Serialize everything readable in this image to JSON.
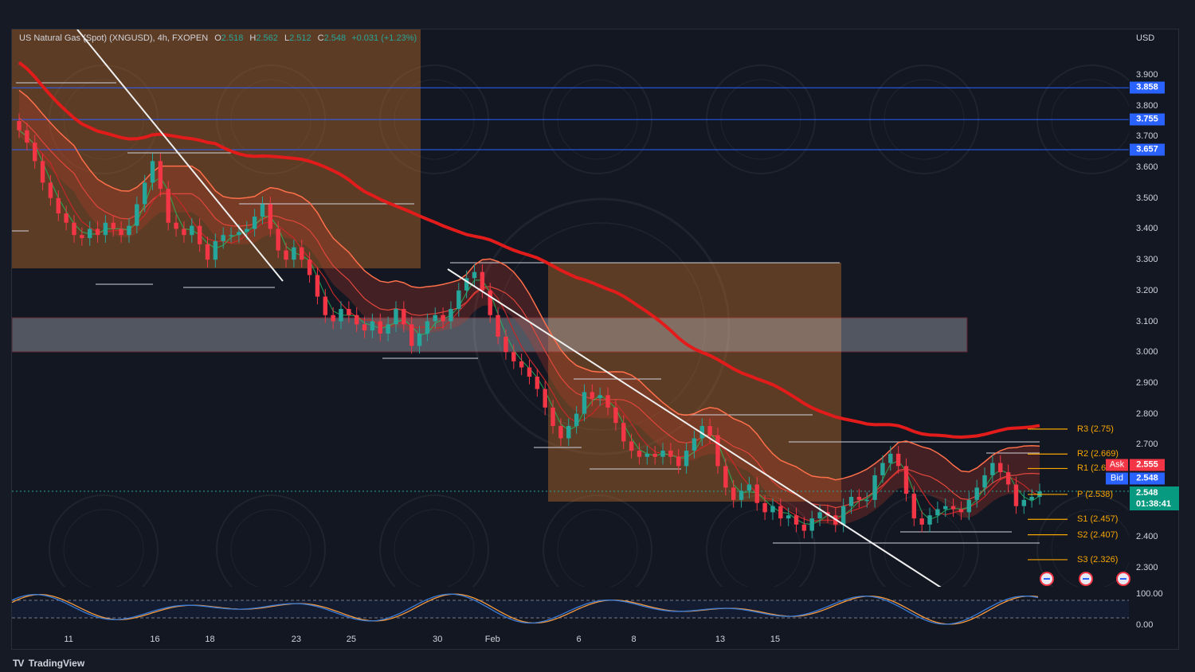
{
  "legend": {
    "symbol": "US Natural Gas (Spot) (XNGUSD), 4h, FXOPEN",
    "o_label": "O",
    "o_value": "2.518",
    "h_label": "H",
    "h_value": "2.562",
    "l_label": "L",
    "l_value": "2.512",
    "c_label": "C",
    "c_value": "2.548",
    "change": "+0.031 (+1.23%)"
  },
  "brand": {
    "logo": "TV",
    "name": "TradingView"
  },
  "axis": {
    "currency": "USD",
    "y_ticks": [
      "3.900",
      "3.800",
      "3.700",
      "3.600",
      "3.500",
      "3.400",
      "3.300",
      "3.200",
      "3.100",
      "3.000",
      "2.900",
      "2.800",
      "2.700",
      "2.400",
      "2.300"
    ],
    "x_ticks": [
      "11",
      "16",
      "18",
      "23",
      "25",
      "30",
      "Feb",
      "6",
      "8",
      "13",
      "15"
    ],
    "osc_ticks": [
      "100.00",
      "0.00"
    ]
  },
  "price_levels": [
    "3.858",
    "3.755",
    "3.657"
  ],
  "quote": {
    "ask_label": "Ask",
    "ask_value": "2.555",
    "bid_label": "Bid",
    "bid_value": "2.548",
    "last_value": "2.548",
    "countdown": "01:38:41"
  },
  "pivots": [
    {
      "label": "R3 (2.75)",
      "value": 2.75
    },
    {
      "label": "R2 (2.669)",
      "value": 2.669
    },
    {
      "label": "R1 (2.6",
      "value": 2.622
    },
    {
      "label": "P (2.538)",
      "value": 2.538
    },
    {
      "label": "S1 (2.457)",
      "value": 2.457
    },
    {
      "label": "S2 (2.407)",
      "value": 2.407
    },
    {
      "label": "S3 (2.326)",
      "value": 2.326
    }
  ],
  "colors": {
    "up": "#26a69a",
    "down": "#f23645",
    "ma_long": "#e21b1b",
    "envelope": "#ff6f4a",
    "level_line": "#2962ff",
    "pivot": "#f7a600",
    "supply_zone": "#b86a2a",
    "osc_k": "#f79a3e",
    "osc_d": "#3a7bd5"
  },
  "chart_data": {
    "type": "candlestick",
    "title": "US Natural Gas (Spot) (XNGUSD), 4h, FXOPEN",
    "xlabel": "",
    "ylabel": "",
    "ylim": [
      2.22,
      3.97
    ],
    "x_labels": [
      "11",
      "16",
      "18",
      "23",
      "25",
      "30",
      "Feb",
      "6",
      "8",
      "13",
      "15"
    ],
    "horizontal_levels": [
      3.858,
      3.755,
      3.657
    ],
    "zone": [
      3.0,
      3.11
    ],
    "trendlines": [
      {
        "from_price": 4.0,
        "to_price": 3.2,
        "note": "descending"
      },
      {
        "from_price": 3.27,
        "to_price": 2.33,
        "note": "descending"
      }
    ],
    "closes": [
      3.72,
      3.68,
      3.62,
      3.55,
      3.5,
      3.45,
      3.42,
      3.38,
      3.37,
      3.4,
      3.38,
      3.42,
      3.4,
      3.38,
      3.41,
      3.48,
      3.55,
      3.62,
      3.53,
      3.42,
      3.4,
      3.38,
      3.41,
      3.35,
      3.3,
      3.36,
      3.38,
      3.38,
      3.39,
      3.4,
      3.44,
      3.48,
      3.4,
      3.33,
      3.3,
      3.34,
      3.3,
      3.25,
      3.18,
      3.12,
      3.1,
      3.14,
      3.12,
      3.09,
      3.07,
      3.1,
      3.06,
      3.09,
      3.14,
      3.09,
      3.02,
      3.06,
      3.1,
      3.12,
      3.1,
      3.14,
      3.2,
      3.24,
      3.26,
      3.2,
      3.12,
      3.05,
      3.0,
      2.97,
      2.95,
      2.92,
      2.88,
      2.82,
      2.76,
      2.72,
      2.76,
      2.8,
      2.87,
      2.85,
      2.86,
      2.82,
      2.77,
      2.71,
      2.68,
      2.66,
      2.67,
      2.66,
      2.68,
      2.66,
      2.63,
      2.68,
      2.72,
      2.76,
      2.73,
      2.63,
      2.56,
      2.52,
      2.55,
      2.57,
      2.51,
      2.48,
      2.5,
      2.46,
      2.47,
      2.44,
      2.42,
      2.46,
      2.48,
      2.47,
      2.44,
      2.5,
      2.53,
      2.52,
      2.52,
      2.6,
      2.64,
      2.67,
      2.63,
      2.54,
      2.46,
      2.44,
      2.47,
      2.49,
      2.5,
      2.49,
      2.48,
      2.52,
      2.56,
      2.6,
      2.64,
      2.61,
      2.57,
      2.5,
      2.52,
      2.53,
      2.548
    ]
  }
}
